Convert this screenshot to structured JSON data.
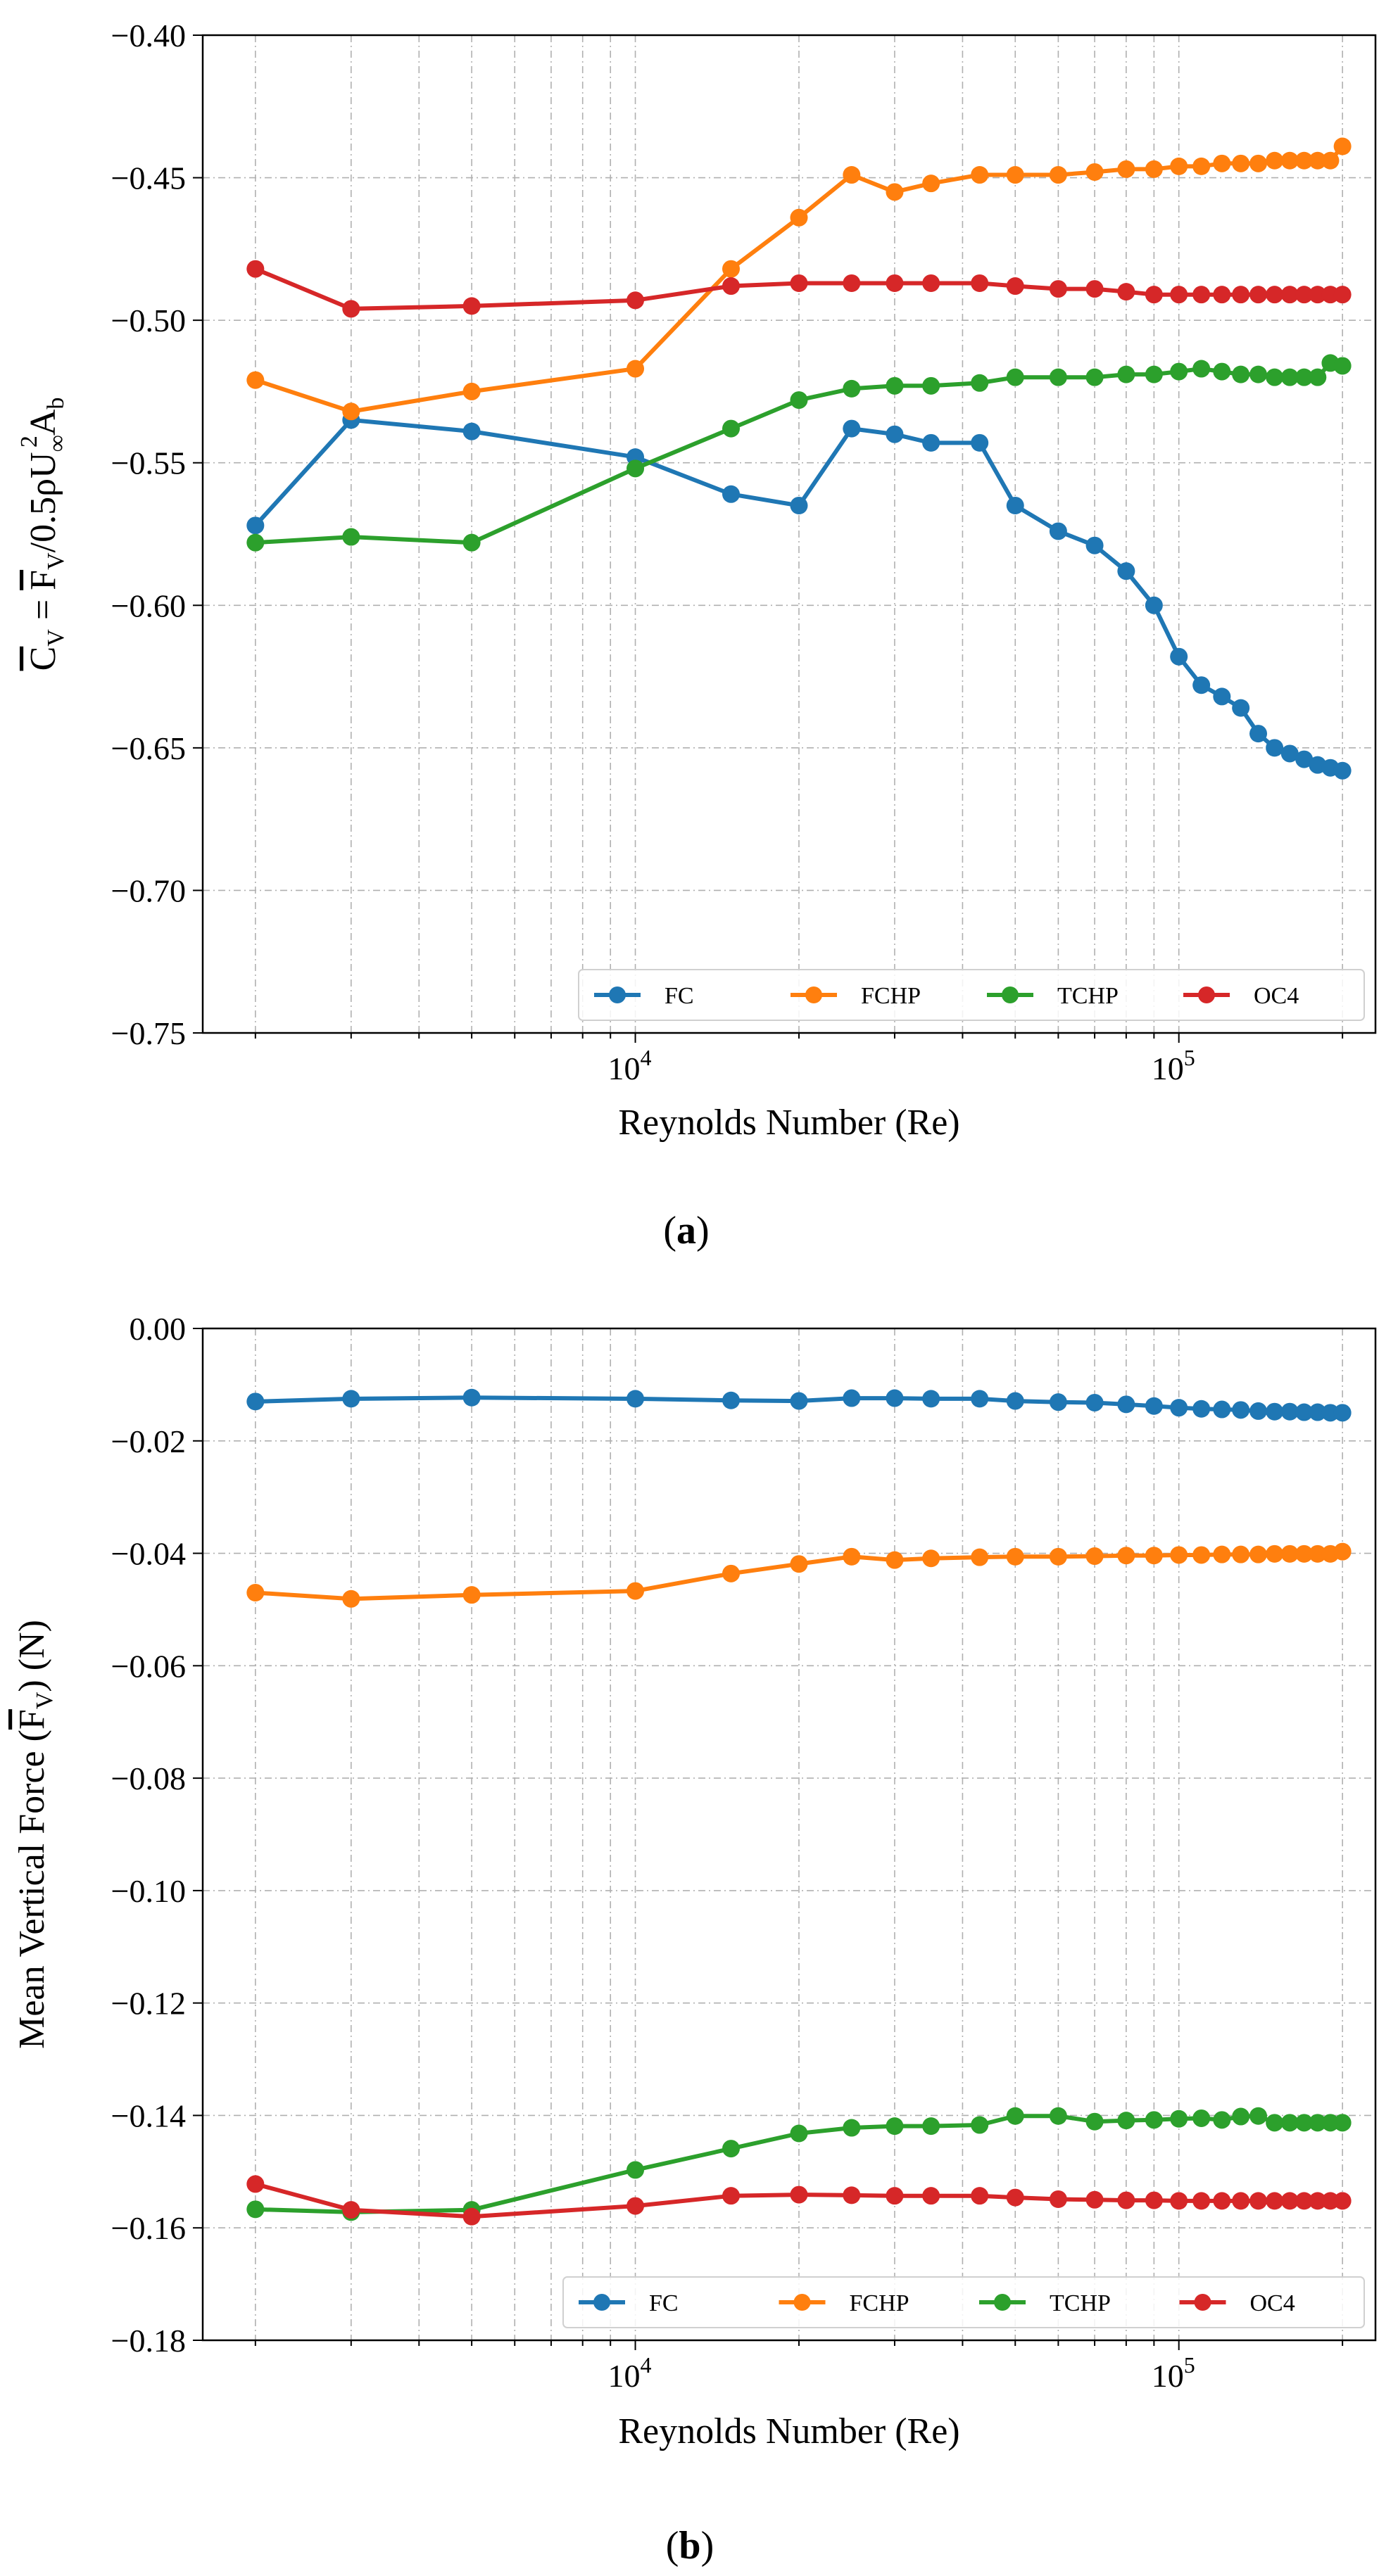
{
  "figure": {
    "caption_a": {
      "open": "(",
      "letter": "a",
      "close": ")"
    },
    "caption_b": {
      "open": "(",
      "letter": "b",
      "close": ")"
    }
  },
  "chart_data": [
    {
      "type": "line",
      "panel": "a",
      "xscale": "log",
      "xlim": [
        1600,
        230000
      ],
      "ylim": [
        -0.75,
        -0.4
      ],
      "xlabel": "Reynolds Number (Re)",
      "ylabel": "C̅V = F̅V/0.5ρU∞²Ab",
      "grid": true,
      "legend_position": "bottom-right",
      "xticks": [
        {
          "base": "10",
          "exp": "4",
          "value": 10000
        },
        {
          "base": "10",
          "exp": "5",
          "value": 100000
        }
      ],
      "yticks": [
        {
          "value": -0.4,
          "label": "−0.40"
        },
        {
          "value": -0.45,
          "label": "−0.45"
        },
        {
          "value": -0.5,
          "label": "−0.50"
        },
        {
          "value": -0.55,
          "label": "−0.55"
        },
        {
          "value": -0.6,
          "label": "−0.60"
        },
        {
          "value": -0.65,
          "label": "−0.65"
        },
        {
          "value": -0.7,
          "label": "−0.70"
        },
        {
          "value": -0.75,
          "label": "−0.75"
        }
      ],
      "x": [
        2000,
        3000,
        5000,
        10000,
        15000,
        20000,
        25000,
        30000,
        35000,
        43000,
        50000,
        60000,
        70000,
        80000,
        90000,
        100000,
        110000,
        120000,
        130000,
        140000,
        150000,
        160000,
        170000,
        180000,
        190000,
        200000
      ],
      "series": [
        {
          "name": "FC",
          "color": "#1f77b4",
          "values": [
            -0.572,
            -0.535,
            -0.539,
            -0.548,
            -0.561,
            -0.565,
            -0.538,
            -0.54,
            -0.543,
            -0.543,
            -0.565,
            -0.574,
            -0.579,
            -0.588,
            -0.6,
            -0.618,
            -0.628,
            -0.632,
            -0.636,
            -0.645,
            -0.65,
            -0.652,
            -0.654,
            -0.656,
            -0.657,
            -0.658
          ]
        },
        {
          "name": "FCHP",
          "color": "#ff7f0e",
          "values": [
            -0.521,
            -0.532,
            -0.525,
            -0.517,
            -0.482,
            -0.464,
            -0.449,
            -0.455,
            -0.452,
            -0.449,
            -0.449,
            -0.449,
            -0.448,
            -0.447,
            -0.447,
            -0.446,
            -0.446,
            -0.445,
            -0.445,
            -0.445,
            -0.444,
            -0.444,
            -0.444,
            -0.444,
            -0.444,
            -0.439
          ]
        },
        {
          "name": "TCHP",
          "color": "#2ca02c",
          "values": [
            -0.578,
            -0.576,
            -0.578,
            -0.552,
            -0.538,
            -0.528,
            -0.524,
            -0.523,
            -0.523,
            -0.522,
            -0.52,
            -0.52,
            -0.52,
            -0.519,
            -0.519,
            -0.518,
            -0.517,
            -0.518,
            -0.519,
            -0.519,
            -0.52,
            -0.52,
            -0.52,
            -0.52,
            -0.515,
            -0.516
          ]
        },
        {
          "name": "OC4",
          "color": "#d62728",
          "values": [
            -0.482,
            -0.496,
            -0.495,
            -0.493,
            -0.488,
            -0.487,
            -0.487,
            -0.487,
            -0.487,
            -0.487,
            -0.488,
            -0.489,
            -0.489,
            -0.49,
            -0.491,
            -0.491,
            -0.491,
            -0.491,
            -0.491,
            -0.491,
            -0.491,
            -0.491,
            -0.491,
            -0.491,
            -0.491,
            -0.491
          ]
        }
      ]
    },
    {
      "type": "line",
      "panel": "b",
      "xscale": "log",
      "xlim": [
        1600,
        230000
      ],
      "ylim": [
        -0.18,
        0.0
      ],
      "xlabel": "Reynolds Number (Re)",
      "ylabel": "Mean Vertical Force (F̅V) (N)",
      "grid": true,
      "legend_position": "bottom-right",
      "xticks": [
        {
          "base": "10",
          "exp": "4",
          "value": 10000
        },
        {
          "base": "10",
          "exp": "5",
          "value": 100000
        }
      ],
      "yticks": [
        {
          "value": 0.0,
          "label": "0.00"
        },
        {
          "value": -0.02,
          "label": "−0.02"
        },
        {
          "value": -0.04,
          "label": "−0.04"
        },
        {
          "value": -0.06,
          "label": "−0.06"
        },
        {
          "value": -0.08,
          "label": "−0.08"
        },
        {
          "value": -0.1,
          "label": "−0.10"
        },
        {
          "value": -0.12,
          "label": "−0.12"
        },
        {
          "value": -0.14,
          "label": "−0.14"
        },
        {
          "value": -0.16,
          "label": "−0.16"
        },
        {
          "value": -0.18,
          "label": "−0.18"
        }
      ],
      "x": [
        2000,
        3000,
        5000,
        10000,
        15000,
        20000,
        25000,
        30000,
        35000,
        43000,
        50000,
        60000,
        70000,
        80000,
        90000,
        100000,
        110000,
        120000,
        130000,
        140000,
        150000,
        160000,
        170000,
        180000,
        190000,
        200000
      ],
      "series": [
        {
          "name": "FC",
          "color": "#1f77b4",
          "values": [
            -0.013,
            -0.0125,
            -0.0123,
            -0.0125,
            -0.0128,
            -0.0129,
            -0.0124,
            -0.0124,
            -0.0125,
            -0.0125,
            -0.0129,
            -0.0131,
            -0.0132,
            -0.0135,
            -0.0138,
            -0.0141,
            -0.0143,
            -0.0144,
            -0.0145,
            -0.0147,
            -0.0148,
            -0.0148,
            -0.0149,
            -0.0149,
            -0.015,
            -0.015
          ]
        },
        {
          "name": "FCHP",
          "color": "#ff7f0e",
          "values": [
            -0.047,
            -0.0481,
            -0.0474,
            -0.0467,
            -0.0436,
            -0.0419,
            -0.0406,
            -0.0412,
            -0.0409,
            -0.0407,
            -0.0406,
            -0.0406,
            -0.0405,
            -0.0404,
            -0.0404,
            -0.0403,
            -0.0403,
            -0.0402,
            -0.0402,
            -0.0402,
            -0.0401,
            -0.0401,
            -0.0401,
            -0.0401,
            -0.0401,
            -0.0397
          ]
        },
        {
          "name": "TCHP",
          "color": "#2ca02c",
          "values": [
            -0.1567,
            -0.1572,
            -0.1568,
            -0.1497,
            -0.1459,
            -0.1432,
            -0.1422,
            -0.1419,
            -0.1419,
            -0.1417,
            -0.1401,
            -0.1401,
            -0.1411,
            -0.1409,
            -0.1408,
            -0.1406,
            -0.1405,
            -0.1408,
            -0.1402,
            -0.1401,
            -0.1413,
            -0.1413,
            -0.1413,
            -0.1413,
            -0.1413,
            -0.1413
          ]
        },
        {
          "name": "OC4",
          "color": "#d62728",
          "values": [
            -0.1522,
            -0.1568,
            -0.158,
            -0.1561,
            -0.1543,
            -0.1541,
            -0.1542,
            -0.1543,
            -0.1543,
            -0.1543,
            -0.1546,
            -0.1549,
            -0.155,
            -0.1551,
            -0.1551,
            -0.1552,
            -0.1552,
            -0.1552,
            -0.1552,
            -0.1552,
            -0.1552,
            -0.1552,
            -0.1552,
            -0.1552,
            -0.1552,
            -0.1552
          ]
        }
      ]
    }
  ]
}
